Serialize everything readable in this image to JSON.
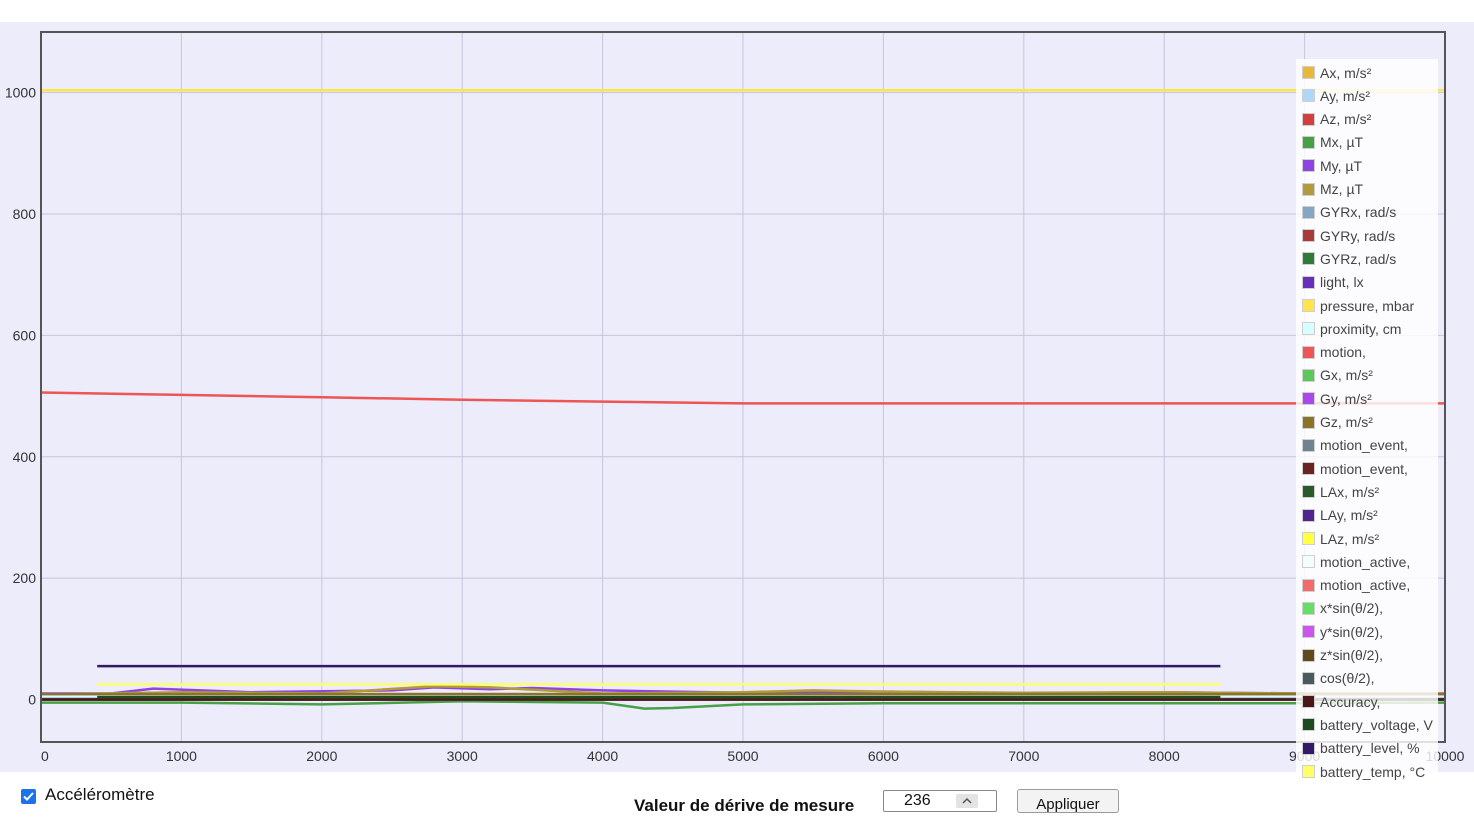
{
  "chart_data": {
    "type": "line",
    "xlim": [
      0,
      10000
    ],
    "ylim": [
      -70,
      1100
    ],
    "x_ticks": [
      0,
      1000,
      2000,
      3000,
      4000,
      5000,
      6000,
      7000,
      8000,
      9000,
      10000
    ],
    "x_tick_labels": [
      "0",
      "1000",
      "2000",
      "3000",
      "4000",
      "5000",
      "6000",
      "7000",
      "8000",
      "9000",
      "10000"
    ],
    "y_ticks": [
      0,
      200,
      400,
      600,
      800,
      1000
    ],
    "y_tick_labels": [
      "0",
      "200",
      "400",
      "600",
      "800",
      "1000"
    ],
    "grid": true,
    "legend_position": "right",
    "series": [
      {
        "name": "Ax, m/s²",
        "color": "#e8b83a",
        "x": [
          0,
          10000
        ],
        "y": [
          1,
          1
        ]
      },
      {
        "name": "Ay, m/s²",
        "color": "#add8f7",
        "x": [
          0,
          10000
        ],
        "y": [
          0,
          0
        ]
      },
      {
        "name": "Az, m/s²",
        "color": "#d04040",
        "x": [
          0,
          10000
        ],
        "y": [
          9,
          9
        ]
      },
      {
        "name": "Mx, µT",
        "color": "#46a046",
        "x": [
          0,
          1000,
          2000,
          3000,
          4000,
          4300,
          4500,
          5000,
          6000,
          7000,
          8000,
          9000,
          10000
        ],
        "y": [
          -5,
          -5,
          -8,
          -3,
          -5,
          -15,
          -14,
          -8,
          -6,
          -6,
          -6,
          -6,
          -5
        ]
      },
      {
        "name": "My, µT",
        "color": "#8e44e0",
        "x": [
          0,
          500,
          800,
          1500,
          2500,
          2800,
          3200,
          3500,
          4000,
          4500,
          5000,
          6000,
          7000,
          8000,
          9000,
          10000
        ],
        "y": [
          10,
          10,
          18,
          12,
          15,
          20,
          17,
          19,
          15,
          13,
          11,
          13,
          10,
          12,
          10,
          10
        ]
      },
      {
        "name": "Mz, µT",
        "color": "#b39a3a",
        "x": [
          0,
          1000,
          2000,
          2800,
          3200,
          4000,
          5000,
          5500,
          6000,
          7000,
          8000,
          9000,
          10000
        ],
        "y": [
          8,
          12,
          10,
          22,
          20,
          10,
          12,
          15,
          13,
          11,
          12,
          10,
          10
        ]
      },
      {
        "name": "GYRx, rad/s",
        "color": "#86a6c6",
        "x": [
          0,
          10000
        ],
        "y": [
          0,
          0
        ]
      },
      {
        "name": "GYRy, rad/s",
        "color": "#a83a3a",
        "x": [
          0,
          10000
        ],
        "y": [
          0,
          0
        ]
      },
      {
        "name": "GYRz, rad/s",
        "color": "#2e7a36",
        "x": [
          0,
          10000
        ],
        "y": [
          0,
          0
        ]
      },
      {
        "name": "light, lx",
        "color": "#6a2fb8",
        "x": [
          0,
          10000
        ],
        "y": [
          3,
          3
        ]
      },
      {
        "name": "pressure, mbar",
        "color": "#ffe54a",
        "x": [
          0,
          10000
        ],
        "y": [
          1004,
          1004
        ]
      },
      {
        "name": "proximity, cm",
        "color": "#d6ffff",
        "x": [
          0,
          10000
        ],
        "y": [
          5,
          5
        ]
      },
      {
        "name": "motion,",
        "color": "#ee5555",
        "x": [
          0,
          1000,
          2000,
          3000,
          4000,
          5000,
          6000,
          7000,
          8000,
          9000,
          10000
        ],
        "y": [
          506,
          502,
          498,
          494,
          491,
          488,
          488,
          488,
          488,
          488,
          488
        ]
      },
      {
        "name": "Gx, m/s²",
        "color": "#5cc85c",
        "x": [
          0,
          10000
        ],
        "y": [
          0,
          0
        ]
      },
      {
        "name": "Gy, m/s²",
        "color": "#a94ae8",
        "x": [
          0,
          10000
        ],
        "y": [
          0,
          0
        ]
      },
      {
        "name": "Gz, m/s²",
        "color": "#8a7428",
        "x": [
          0,
          10000
        ],
        "y": [
          9,
          9
        ]
      },
      {
        "name": "motion_event,",
        "color": "#6f8393",
        "x": [
          0,
          10000
        ],
        "y": [
          0,
          0
        ]
      },
      {
        "name": "motion_event,",
        "color": "#6a2323",
        "x": [
          0,
          10000
        ],
        "y": [
          0,
          0
        ]
      },
      {
        "name": "LAx, m/s²",
        "color": "#2a5a2a",
        "x": [
          0,
          10000
        ],
        "y": [
          0,
          0
        ]
      },
      {
        "name": "LAy, m/s²",
        "color": "#54248e",
        "x": [
          0,
          10000
        ],
        "y": [
          0,
          0
        ]
      },
      {
        "name": "LAz, m/s²",
        "color": "#ffff44",
        "x": [
          0,
          10000
        ],
        "y": [
          0,
          0
        ]
      },
      {
        "name": "motion_active,",
        "color": "#f2fdfd",
        "x": [
          0,
          10000
        ],
        "y": [
          0,
          0
        ]
      },
      {
        "name": "motion_active,",
        "color": "#f26a6a",
        "x": [
          0,
          10000
        ],
        "y": [
          0,
          0
        ]
      },
      {
        "name": "x*sin(θ/2),",
        "color": "#66dd66",
        "x": [
          0,
          10000
        ],
        "y": [
          0,
          0
        ]
      },
      {
        "name": "y*sin(θ/2),",
        "color": "#cc55ee",
        "x": [
          0,
          10000
        ],
        "y": [
          0,
          0
        ]
      },
      {
        "name": "z*sin(θ/2),",
        "color": "#5e4a1a",
        "x": [
          0,
          10000
        ],
        "y": [
          0,
          0
        ]
      },
      {
        "name": "cos(θ/2),",
        "color": "#4a5a5e",
        "x": [
          0,
          10000
        ],
        "y": [
          0,
          0
        ]
      },
      {
        "name": "Accuracy,",
        "color": "#4a1818",
        "x": [
          0,
          10000
        ],
        "y": [
          0,
          0
        ]
      },
      {
        "name": "battery_voltage, V",
        "color": "#1f4a1f",
        "x": [
          400,
          8400
        ],
        "y": [
          4,
          4
        ]
      },
      {
        "name": "battery_level, %",
        "color": "#331a66",
        "x": [
          400,
          8400
        ],
        "y": [
          55,
          55
        ]
      },
      {
        "name": "battery_temp, °C",
        "color": "#ffff66",
        "x": [
          400,
          8400
        ],
        "y": [
          25,
          25
        ]
      }
    ]
  },
  "controls": {
    "accelerometer_label": "Accéléromètre",
    "window_label": "Valeur de dérive de mesure",
    "window_value": "236",
    "apply_label": "Appliquer"
  }
}
